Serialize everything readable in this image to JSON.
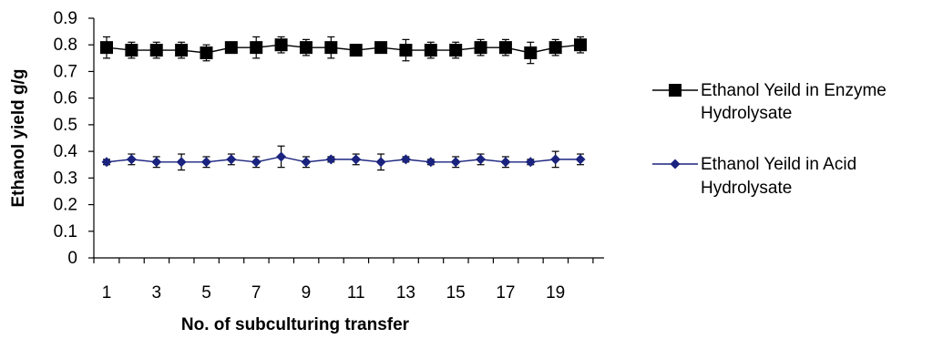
{
  "chart_data": {
    "type": "line",
    "xlabel": "No. of subculturing transfer",
    "ylabel": "Ethanol yield g/g",
    "ylim": [
      0,
      0.9
    ],
    "yticks": [
      "0",
      "0.1",
      "0.2",
      "0.3",
      "0.4",
      "0.5",
      "0.6",
      "0.7",
      "0.8",
      "0.9"
    ],
    "xticks": [
      "1",
      "3",
      "5",
      "7",
      "9",
      "11",
      "13",
      "15",
      "17",
      "19"
    ],
    "x": [
      1,
      2,
      3,
      4,
      5,
      6,
      7,
      8,
      9,
      10,
      11,
      12,
      13,
      14,
      15,
      16,
      17,
      18,
      19,
      20
    ],
    "grid": false,
    "legend_position": "right",
    "series": [
      {
        "name": "Ethanol Yeild in Enzyme Hydrolysate",
        "legend_lines": [
          "Ethanol Yeild in Enzyme",
          "Hydrolysate"
        ],
        "marker": "square",
        "color": "#000000",
        "values": [
          0.79,
          0.78,
          0.78,
          0.78,
          0.77,
          0.79,
          0.79,
          0.8,
          0.79,
          0.79,
          0.78,
          0.79,
          0.78,
          0.78,
          0.78,
          0.79,
          0.79,
          0.77,
          0.79,
          0.8
        ],
        "errors": [
          0.04,
          0.03,
          0.03,
          0.03,
          0.03,
          0.02,
          0.04,
          0.03,
          0.03,
          0.04,
          0.02,
          0.01,
          0.04,
          0.03,
          0.03,
          0.03,
          0.03,
          0.04,
          0.03,
          0.03
        ]
      },
      {
        "name": "Ethanol Yeild in Acid Hydrolysate",
        "legend_lines": [
          "Ethanol Yeild in Acid",
          "Hydrolysate"
        ],
        "marker": "diamond",
        "color": "#1a237e",
        "values": [
          0.36,
          0.37,
          0.36,
          0.36,
          0.36,
          0.37,
          0.36,
          0.38,
          0.36,
          0.37,
          0.37,
          0.36,
          0.37,
          0.36,
          0.36,
          0.37,
          0.36,
          0.36,
          0.37,
          0.37
        ],
        "errors": [
          0.01,
          0.02,
          0.02,
          0.03,
          0.02,
          0.02,
          0.02,
          0.04,
          0.02,
          0.01,
          0.02,
          0.03,
          0.01,
          0.01,
          0.02,
          0.02,
          0.02,
          0.01,
          0.03,
          0.02
        ]
      }
    ]
  }
}
